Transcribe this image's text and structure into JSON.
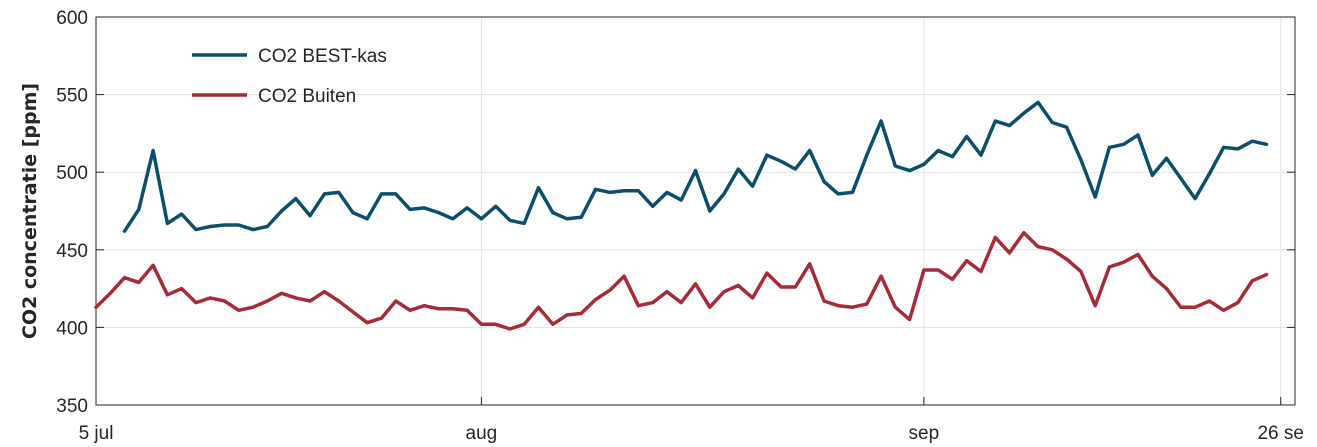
{
  "chart_data": {
    "type": "line",
    "title": "",
    "xlabel": "",
    "ylabel": "CO2 concentratie [ppm]",
    "x_ticks": [
      {
        "label": "5 jul",
        "date": "2023-07-05"
      },
      {
        "label": "aug",
        "date": "2023-08-01"
      },
      {
        "label": "sep",
        "date": "2023-09-01"
      },
      {
        "label": "26 se",
        "date": "2023-09-26"
      }
    ],
    "xlim": [
      "2023-07-05",
      "2023-09-27"
    ],
    "ylim": [
      350,
      600
    ],
    "y_ticks": [
      350,
      400,
      450,
      500,
      550,
      600
    ],
    "grid": true,
    "legend_position": "top-left",
    "series": [
      {
        "name": "CO2 BEST-kas",
        "color": "#0b4f6c",
        "points": [
          [
            "2023-07-07",
            462
          ],
          [
            "2023-07-08",
            476
          ],
          [
            "2023-07-09",
            514
          ],
          [
            "2023-07-10",
            467
          ],
          [
            "2023-07-11",
            473
          ],
          [
            "2023-07-12",
            463
          ],
          [
            "2023-07-13",
            465
          ],
          [
            "2023-07-14",
            466
          ],
          [
            "2023-07-15",
            466
          ],
          [
            "2023-07-16",
            463
          ],
          [
            "2023-07-17",
            465
          ],
          [
            "2023-07-18",
            475
          ],
          [
            "2023-07-19",
            483
          ],
          [
            "2023-07-20",
            472
          ],
          [
            "2023-07-21",
            486
          ],
          [
            "2023-07-22",
            487
          ],
          [
            "2023-07-23",
            474
          ],
          [
            "2023-07-24",
            470
          ],
          [
            "2023-07-25",
            486
          ],
          [
            "2023-07-26",
            486
          ],
          [
            "2023-07-27",
            476
          ],
          [
            "2023-07-28",
            477
          ],
          [
            "2023-07-29",
            474
          ],
          [
            "2023-07-30",
            470
          ],
          [
            "2023-07-31",
            477
          ],
          [
            "2023-08-01",
            470
          ],
          [
            "2023-08-02",
            478
          ],
          [
            "2023-08-03",
            469
          ],
          [
            "2023-08-04",
            467
          ],
          [
            "2023-08-05",
            490
          ],
          [
            "2023-08-06",
            474
          ],
          [
            "2023-08-07",
            470
          ],
          [
            "2023-08-08",
            471
          ],
          [
            "2023-08-09",
            489
          ],
          [
            "2023-08-10",
            487
          ],
          [
            "2023-08-11",
            488
          ],
          [
            "2023-08-12",
            488
          ],
          [
            "2023-08-13",
            478
          ],
          [
            "2023-08-14",
            487
          ],
          [
            "2023-08-15",
            482
          ],
          [
            "2023-08-16",
            501
          ],
          [
            "2023-08-17",
            475
          ],
          [
            "2023-08-18",
            486
          ],
          [
            "2023-08-19",
            502
          ],
          [
            "2023-08-20",
            491
          ],
          [
            "2023-08-21",
            511
          ],
          [
            "2023-08-22",
            507
          ],
          [
            "2023-08-23",
            502
          ],
          [
            "2023-08-24",
            514
          ],
          [
            "2023-08-25",
            494
          ],
          [
            "2023-08-26",
            486
          ],
          [
            "2023-08-27",
            487
          ],
          [
            "2023-08-28",
            511
          ],
          [
            "2023-08-29",
            533
          ],
          [
            "2023-08-30",
            504
          ],
          [
            "2023-08-31",
            501
          ],
          [
            "2023-09-01",
            505
          ],
          [
            "2023-09-02",
            514
          ],
          [
            "2023-09-03",
            510
          ],
          [
            "2023-09-04",
            523
          ],
          [
            "2023-09-05",
            511
          ],
          [
            "2023-09-06",
            533
          ],
          [
            "2023-09-07",
            530
          ],
          [
            "2023-09-08",
            538
          ],
          [
            "2023-09-09",
            545
          ],
          [
            "2023-09-10",
            532
          ],
          [
            "2023-09-11",
            529
          ],
          [
            "2023-09-12",
            508
          ],
          [
            "2023-09-13",
            484
          ],
          [
            "2023-09-14",
            516
          ],
          [
            "2023-09-15",
            518
          ],
          [
            "2023-09-16",
            524
          ],
          [
            "2023-09-17",
            498
          ],
          [
            "2023-09-18",
            509
          ],
          [
            "2023-09-19",
            496
          ],
          [
            "2023-09-20",
            483
          ],
          [
            "2023-09-21",
            499
          ],
          [
            "2023-09-22",
            516
          ],
          [
            "2023-09-23",
            515
          ],
          [
            "2023-09-24",
            520
          ],
          [
            "2023-09-25",
            518
          ]
        ]
      },
      {
        "name": "CO2 Buiten",
        "color": "#a72b36",
        "points": [
          [
            "2023-07-05",
            413
          ],
          [
            "2023-07-06",
            422
          ],
          [
            "2023-07-07",
            432
          ],
          [
            "2023-07-08",
            429
          ],
          [
            "2023-07-09",
            440
          ],
          [
            "2023-07-10",
            421
          ],
          [
            "2023-07-11",
            425
          ],
          [
            "2023-07-12",
            416
          ],
          [
            "2023-07-13",
            419
          ],
          [
            "2023-07-14",
            417
          ],
          [
            "2023-07-15",
            411
          ],
          [
            "2023-07-16",
            413
          ],
          [
            "2023-07-17",
            417
          ],
          [
            "2023-07-18",
            422
          ],
          [
            "2023-07-19",
            419
          ],
          [
            "2023-07-20",
            417
          ],
          [
            "2023-07-21",
            423
          ],
          [
            "2023-07-22",
            417
          ],
          [
            "2023-07-23",
            410
          ],
          [
            "2023-07-24",
            403
          ],
          [
            "2023-07-25",
            406
          ],
          [
            "2023-07-26",
            417
          ],
          [
            "2023-07-27",
            411
          ],
          [
            "2023-07-28",
            414
          ],
          [
            "2023-07-29",
            412
          ],
          [
            "2023-07-30",
            412
          ],
          [
            "2023-07-31",
            411
          ],
          [
            "2023-08-01",
            402
          ],
          [
            "2023-08-02",
            402
          ],
          [
            "2023-08-03",
            399
          ],
          [
            "2023-08-04",
            402
          ],
          [
            "2023-08-05",
            413
          ],
          [
            "2023-08-06",
            402
          ],
          [
            "2023-08-07",
            408
          ],
          [
            "2023-08-08",
            409
          ],
          [
            "2023-08-09",
            418
          ],
          [
            "2023-08-10",
            424
          ],
          [
            "2023-08-11",
            433
          ],
          [
            "2023-08-12",
            414
          ],
          [
            "2023-08-13",
            416
          ],
          [
            "2023-08-14",
            423
          ],
          [
            "2023-08-15",
            416
          ],
          [
            "2023-08-16",
            428
          ],
          [
            "2023-08-17",
            413
          ],
          [
            "2023-08-18",
            423
          ],
          [
            "2023-08-19",
            427
          ],
          [
            "2023-08-20",
            419
          ],
          [
            "2023-08-21",
            435
          ],
          [
            "2023-08-22",
            426
          ],
          [
            "2023-08-23",
            426
          ],
          [
            "2023-08-24",
            441
          ],
          [
            "2023-08-25",
            417
          ],
          [
            "2023-08-26",
            414
          ],
          [
            "2023-08-27",
            413
          ],
          [
            "2023-08-28",
            415
          ],
          [
            "2023-08-29",
            433
          ],
          [
            "2023-08-30",
            413
          ],
          [
            "2023-08-31",
            405
          ],
          [
            "2023-09-01",
            437
          ],
          [
            "2023-09-02",
            437
          ],
          [
            "2023-09-03",
            431
          ],
          [
            "2023-09-04",
            443
          ],
          [
            "2023-09-05",
            436
          ],
          [
            "2023-09-06",
            458
          ],
          [
            "2023-09-07",
            448
          ],
          [
            "2023-09-08",
            461
          ],
          [
            "2023-09-09",
            452
          ],
          [
            "2023-09-10",
            450
          ],
          [
            "2023-09-11",
            444
          ],
          [
            "2023-09-12",
            436
          ],
          [
            "2023-09-13",
            414
          ],
          [
            "2023-09-14",
            439
          ],
          [
            "2023-09-15",
            442
          ],
          [
            "2023-09-16",
            447
          ],
          [
            "2023-09-17",
            433
          ],
          [
            "2023-09-18",
            425
          ],
          [
            "2023-09-19",
            413
          ],
          [
            "2023-09-20",
            413
          ],
          [
            "2023-09-21",
            417
          ],
          [
            "2023-09-22",
            411
          ],
          [
            "2023-09-23",
            416
          ],
          [
            "2023-09-24",
            430
          ],
          [
            "2023-09-25",
            434
          ]
        ]
      }
    ]
  }
}
